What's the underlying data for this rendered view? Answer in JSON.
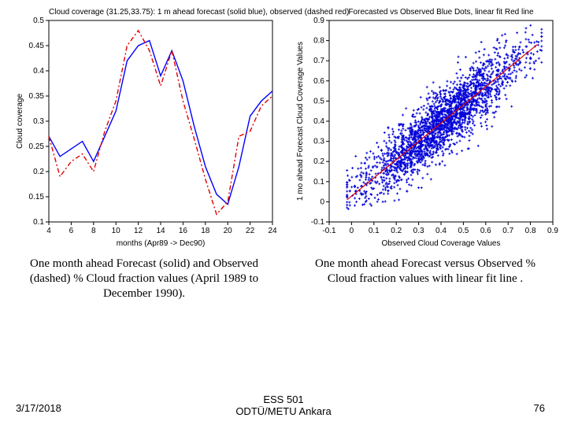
{
  "left_chart": {
    "type": "line",
    "title": "Cloud coverage (31.25,33.75): 1 m ahead forecast (solid blue), observed (dashed red)",
    "title_fontsize": 10,
    "xlabel": "months (Apr89 -> Dec90)",
    "ylabel": "Cloud coverage",
    "label_fontsize": 10,
    "xlim": [
      4,
      24
    ],
    "ylim": [
      0.1,
      0.5
    ],
    "xtick_step": 2,
    "ytick_step": 0.05,
    "background_color": "#ffffff",
    "axis_color": "#000000",
    "series": [
      {
        "name": "forecast",
        "color": "#0000ff",
        "style": "solid",
        "line_width": 1.4,
        "x": [
          4,
          5,
          6,
          7,
          8,
          9,
          10,
          11,
          12,
          13,
          14,
          15,
          16,
          17,
          18,
          19,
          20,
          21,
          22,
          23,
          24
        ],
        "y": [
          0.27,
          0.23,
          0.245,
          0.26,
          0.22,
          0.27,
          0.32,
          0.42,
          0.45,
          0.46,
          0.39,
          0.44,
          0.38,
          0.29,
          0.21,
          0.155,
          0.135,
          0.21,
          0.31,
          0.34,
          0.36
        ]
      },
      {
        "name": "observed",
        "color": "#e00000",
        "style": "dashdot",
        "line_width": 1.4,
        "x": [
          4,
          5,
          6,
          7,
          8,
          9,
          10,
          11,
          12,
          13,
          14,
          15,
          16,
          17,
          18,
          19,
          20,
          21,
          22,
          23,
          24
        ],
        "y": [
          0.27,
          0.19,
          0.22,
          0.235,
          0.2,
          0.28,
          0.34,
          0.45,
          0.48,
          0.44,
          0.37,
          0.44,
          0.34,
          0.265,
          0.185,
          0.115,
          0.14,
          0.27,
          0.28,
          0.33,
          0.35
        ]
      }
    ]
  },
  "right_chart": {
    "type": "scatter",
    "title": "Forecasted vs Observed Blue Dots, linear fit Red line",
    "title_fontsize": 10,
    "xlabel": "Observed Cloud Coverage Values",
    "ylabel": "1 mo ahead Forecast Cloud Coverage Values",
    "label_fontsize": 10,
    "xlim": [
      -0.1,
      0.9
    ],
    "ylim": [
      -0.1,
      0.9
    ],
    "xtick_step": 0.1,
    "ytick_step": 0.1,
    "background_color": "#ffffff",
    "axis_color": "#000000",
    "scatter": {
      "color": "#0000d8",
      "marker": "plus",
      "marker_size": 3,
      "n_points": 2400,
      "spread": 0.08,
      "trend": {
        "slope": 0.9,
        "intercept": 0.03
      }
    },
    "fit_line": {
      "color": "#e00000",
      "line_width": 1.2,
      "x0": -0.02,
      "y0": 0.01,
      "x1": 0.83,
      "y1": 0.78
    }
  },
  "captions": {
    "left": "One  month  ahead  Forecast (solid)  and  Observed (dashed)  %  Cloud fraction values (April  1989  to  December  1990).",
    "right": "One  month  ahead  Forecast versus  Observed  % Cloud fraction values  with  linear  fit  line ."
  },
  "footer": {
    "date": "3/17/2018",
    "center1": "ESS 501",
    "center2": "ODTÜ/METU Ankara",
    "page": "76"
  },
  "caption_fontsize": 15
}
